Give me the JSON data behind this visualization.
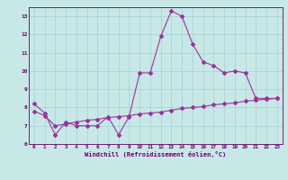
{
  "xlabel": "Windchill (Refroidissement éolien,°C)",
  "line1_x": [
    0,
    1,
    2,
    3,
    4,
    5,
    6,
    7,
    8,
    9,
    10,
    11,
    12,
    13,
    14,
    15,
    16,
    17,
    18,
    19,
    20,
    21,
    22,
    23
  ],
  "line1_y": [
    8.2,
    7.7,
    6.5,
    7.2,
    7.0,
    7.0,
    7.0,
    7.5,
    6.5,
    7.5,
    9.9,
    9.9,
    11.9,
    13.3,
    13.0,
    11.5,
    10.5,
    10.3,
    9.9,
    10.0,
    9.9,
    8.5,
    8.5,
    8.5
  ],
  "line2_x": [
    0,
    1,
    2,
    3,
    4,
    5,
    6,
    7,
    8,
    9,
    10,
    11,
    12,
    13,
    14,
    15,
    16,
    17,
    18,
    19,
    20,
    21,
    22,
    23
  ],
  "line2_y": [
    7.8,
    7.55,
    7.0,
    7.1,
    7.2,
    7.3,
    7.35,
    7.45,
    7.5,
    7.55,
    7.65,
    7.7,
    7.75,
    7.85,
    7.95,
    8.0,
    8.05,
    8.15,
    8.2,
    8.25,
    8.35,
    8.4,
    8.45,
    8.5
  ],
  "line_color": "#993399",
  "bg_color": "#c8e8e8",
  "grid_color": "#aad4d4",
  "axis_color": "#660066",
  "text_color": "#660066",
  "ylim": [
    6,
    13.5
  ],
  "xlim": [
    -0.5,
    23.5
  ],
  "yticks": [
    6,
    7,
    8,
    9,
    10,
    11,
    12,
    13
  ],
  "xticks": [
    0,
    1,
    2,
    3,
    4,
    5,
    6,
    7,
    8,
    9,
    10,
    11,
    12,
    13,
    14,
    15,
    16,
    17,
    18,
    19,
    20,
    21,
    22,
    23
  ],
  "tick_fontsize": 4.2,
  "xlabel_fontsize": 5.0
}
